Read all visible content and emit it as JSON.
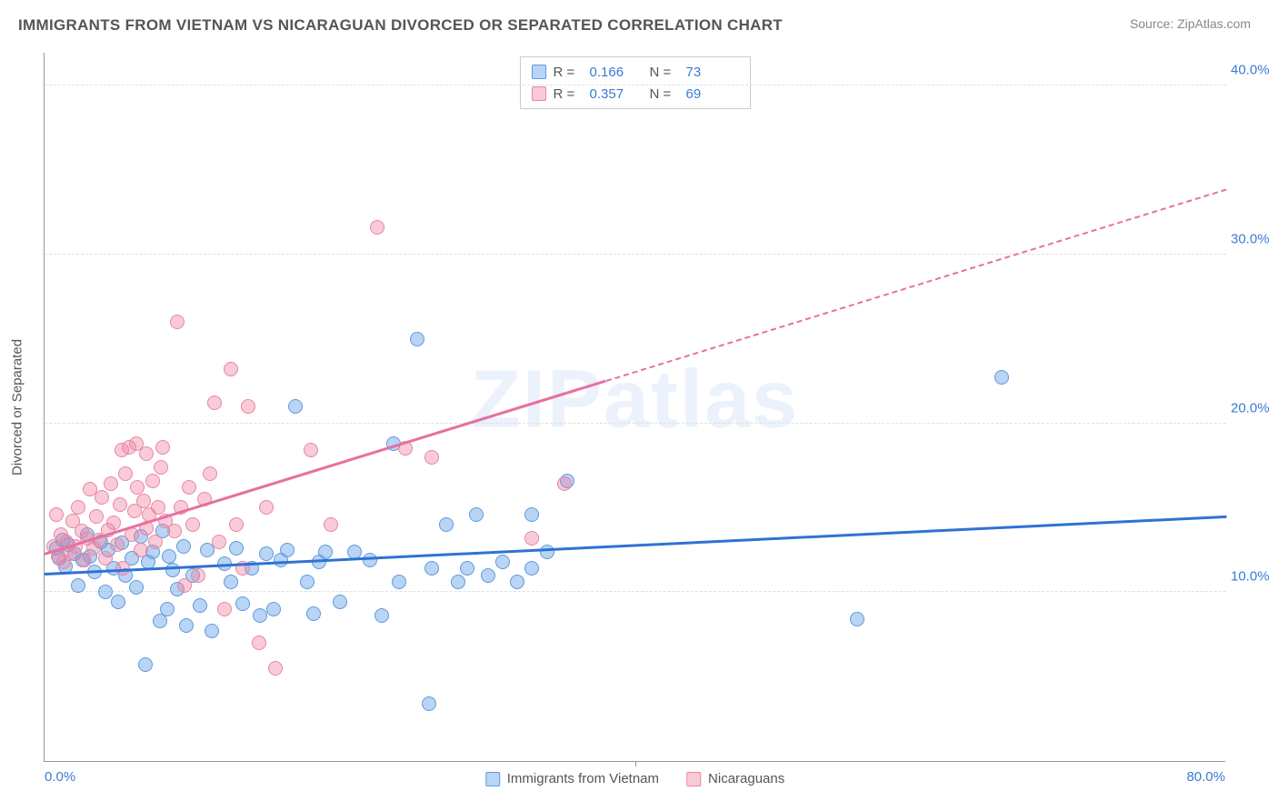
{
  "title": "IMMIGRANTS FROM VIETNAM VS NICARAGUAN DIVORCED OR SEPARATED CORRELATION CHART",
  "source": "Source: ZipAtlas.com",
  "watermark": "ZIPatlas",
  "chart": {
    "type": "scatter",
    "xlim": [
      0,
      80
    ],
    "ylim": [
      0,
      42
    ],
    "x_tick_min_label": "0.0%",
    "x_tick_max_label": "80.0%",
    "x_mid_tick_value": 40,
    "y_ticks": [
      10,
      20,
      30,
      40
    ],
    "y_tick_labels": [
      "10.0%",
      "20.0%",
      "30.0%",
      "40.0%"
    ],
    "ylabel": "Divorced or Separated",
    "grid_color": "#e0e0e0",
    "axis_color": "#999999",
    "tick_font_color": "#3a7bd5",
    "marker_radius": 8,
    "marker_opacity": 0.55,
    "series": [
      {
        "name": "Immigrants from Vietnam",
        "color_fill": "rgba(100,160,230,0.45)",
        "color_stroke": "#5d9ae0",
        "trend_color": "#2f72d4",
        "trend": {
          "x1": 0,
          "y1": 11.0,
          "x2": 80,
          "y2": 14.4,
          "dash": false,
          "dash_from_x": null
        },
        "R": 0.166,
        "N": 73,
        "points": [
          [
            0.8,
            12.6
          ],
          [
            1.0,
            12.0
          ],
          [
            1.2,
            13.1
          ],
          [
            1.4,
            11.5
          ],
          [
            1.6,
            12.8
          ],
          [
            2.0,
            12.3
          ],
          [
            2.3,
            10.4
          ],
          [
            2.6,
            11.9
          ],
          [
            2.9,
            13.4
          ],
          [
            3.1,
            12.1
          ],
          [
            3.4,
            11.2
          ],
          [
            3.8,
            13.0
          ],
          [
            4.1,
            10.0
          ],
          [
            4.3,
            12.5
          ],
          [
            4.7,
            11.4
          ],
          [
            5.0,
            9.4
          ],
          [
            5.2,
            12.9
          ],
          [
            5.5,
            11.0
          ],
          [
            5.9,
            12.0
          ],
          [
            6.2,
            10.3
          ],
          [
            6.5,
            13.3
          ],
          [
            6.8,
            5.7
          ],
          [
            7.0,
            11.8
          ],
          [
            7.3,
            12.4
          ],
          [
            7.8,
            8.3
          ],
          [
            8.0,
            13.6
          ],
          [
            8.4,
            12.1
          ],
          [
            8.7,
            11.3
          ],
          [
            8.3,
            9.0
          ],
          [
            9.0,
            10.2
          ],
          [
            9.4,
            12.7
          ],
          [
            10.0,
            11.0
          ],
          [
            10.5,
            9.2
          ],
          [
            11.0,
            12.5
          ],
          [
            11.3,
            7.7
          ],
          [
            9.6,
            8.0
          ],
          [
            12.2,
            11.7
          ],
          [
            12.6,
            10.6
          ],
          [
            13.0,
            12.6
          ],
          [
            13.4,
            9.3
          ],
          [
            14.0,
            11.4
          ],
          [
            14.6,
            8.6
          ],
          [
            15.0,
            12.3
          ],
          [
            15.5,
            9.0
          ],
          [
            16.0,
            11.9
          ],
          [
            16.4,
            12.5
          ],
          [
            17.0,
            21.0
          ],
          [
            17.8,
            10.6
          ],
          [
            18.2,
            8.7
          ],
          [
            18.6,
            11.8
          ],
          [
            19.0,
            12.4
          ],
          [
            20.0,
            9.4
          ],
          [
            21.0,
            12.4
          ],
          [
            22.0,
            11.9
          ],
          [
            22.8,
            8.6
          ],
          [
            24.0,
            10.6
          ],
          [
            23.6,
            18.8
          ],
          [
            25.2,
            25.0
          ],
          [
            26.0,
            3.4
          ],
          [
            26.2,
            11.4
          ],
          [
            27.2,
            14.0
          ],
          [
            28.0,
            10.6
          ],
          [
            28.6,
            11.4
          ],
          [
            29.2,
            14.6
          ],
          [
            30.0,
            11.0
          ],
          [
            31.0,
            11.8
          ],
          [
            32.0,
            10.6
          ],
          [
            33.0,
            14.6
          ],
          [
            34.0,
            12.4
          ],
          [
            33.0,
            11.4
          ],
          [
            35.4,
            16.6
          ],
          [
            55.0,
            8.4
          ],
          [
            64.8,
            22.7
          ]
        ]
      },
      {
        "name": "Nicaraguans",
        "color_fill": "rgba(240,130,160,0.42)",
        "color_stroke": "#e985a6",
        "trend_color": "#e770a0",
        "trend": {
          "x1": 0,
          "y1": 12.2,
          "x2": 80,
          "y2": 33.8,
          "dash": true,
          "dash_from_x": 38
        },
        "R": 0.357,
        "N": 69,
        "points": [
          [
            0.6,
            12.7
          ],
          [
            0.9,
            12.1
          ],
          [
            1.1,
            13.4
          ],
          [
            1.3,
            11.8
          ],
          [
            1.5,
            13.0
          ],
          [
            1.7,
            12.3
          ],
          [
            1.9,
            14.2
          ],
          [
            2.1,
            12.7
          ],
          [
            2.3,
            15.0
          ],
          [
            2.5,
            13.6
          ],
          [
            0.8,
            14.6
          ],
          [
            2.7,
            11.9
          ],
          [
            2.9,
            13.2
          ],
          [
            3.1,
            16.1
          ],
          [
            3.3,
            12.6
          ],
          [
            3.5,
            14.5
          ],
          [
            3.7,
            13.1
          ],
          [
            3.9,
            15.6
          ],
          [
            4.1,
            12.0
          ],
          [
            4.3,
            13.7
          ],
          [
            4.5,
            16.4
          ],
          [
            4.7,
            14.1
          ],
          [
            4.9,
            12.8
          ],
          [
            5.1,
            15.2
          ],
          [
            5.3,
            11.4
          ],
          [
            5.5,
            17.0
          ],
          [
            5.7,
            18.6
          ],
          [
            5.9,
            13.4
          ],
          [
            6.1,
            14.8
          ],
          [
            6.3,
            16.2
          ],
          [
            6.5,
            12.5
          ],
          [
            6.7,
            15.4
          ],
          [
            5.2,
            18.4
          ],
          [
            6.2,
            18.8
          ],
          [
            6.9,
            13.8
          ],
          [
            6.9,
            18.2
          ],
          [
            7.1,
            14.6
          ],
          [
            7.3,
            16.6
          ],
          [
            7.5,
            13.0
          ],
          [
            7.7,
            15.0
          ],
          [
            7.9,
            17.4
          ],
          [
            8.2,
            14.2
          ],
          [
            8.0,
            18.6
          ],
          [
            8.8,
            13.6
          ],
          [
            9.0,
            26.0
          ],
          [
            9.2,
            15.0
          ],
          [
            9.5,
            10.4
          ],
          [
            9.8,
            16.2
          ],
          [
            10.0,
            14.0
          ],
          [
            10.4,
            11.0
          ],
          [
            10.8,
            15.5
          ],
          [
            11.2,
            17.0
          ],
          [
            11.5,
            21.2
          ],
          [
            11.8,
            13.0
          ],
          [
            12.2,
            9.0
          ],
          [
            12.6,
            23.2
          ],
          [
            13.0,
            14.0
          ],
          [
            13.4,
            11.4
          ],
          [
            13.8,
            21.0
          ],
          [
            14.5,
            7.0
          ],
          [
            15.0,
            15.0
          ],
          [
            15.6,
            5.5
          ],
          [
            18.0,
            18.4
          ],
          [
            19.4,
            14.0
          ],
          [
            22.5,
            31.6
          ],
          [
            24.4,
            18.5
          ],
          [
            26.2,
            18.0
          ],
          [
            33.0,
            13.2
          ],
          [
            35.2,
            16.4
          ]
        ]
      }
    ]
  },
  "legend_top": {
    "r_label": "R =",
    "n_label": "N ="
  }
}
